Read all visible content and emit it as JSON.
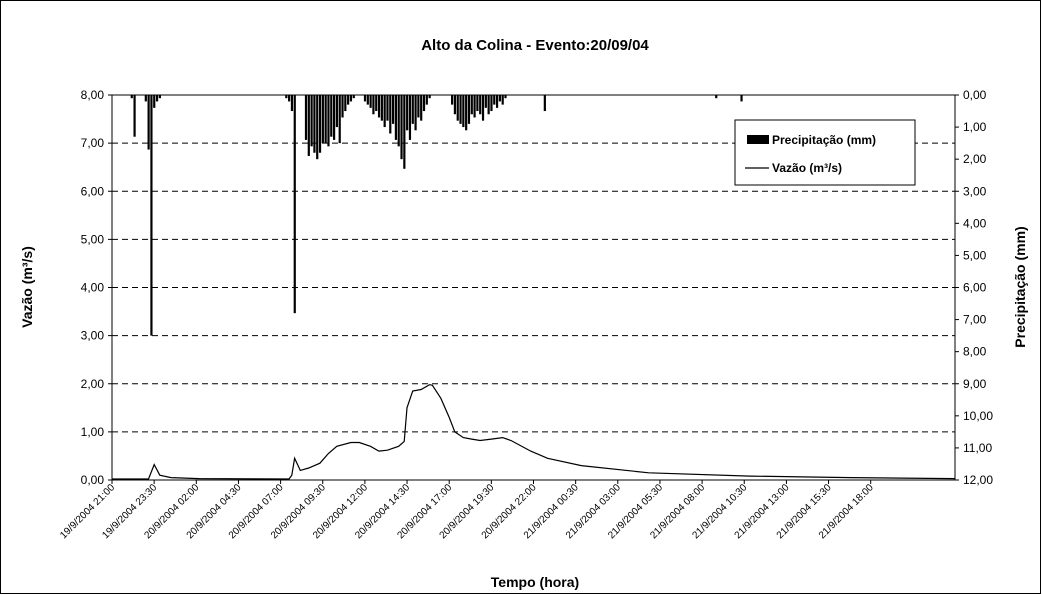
{
  "chart_data": {
    "type": "combo",
    "title": "Alto da Colina - Evento:20/09/04",
    "ylabel": "Vazão (m³/s)",
    "y2label": "Precipitação (mm)",
    "xlabel": "Tempo (hora)",
    "xlim": [
      "19/9/2004 21:00",
      "21/9/2004 23:00"
    ],
    "xticks": [
      "19/9/2004 21:00",
      "19/9/2004 23:30",
      "20/9/2004 02:00",
      "20/9/2004 04:30",
      "20/9/2004 07:00",
      "20/9/2004 09:30",
      "20/9/2004 12:00",
      "20/9/2004 14:30",
      "20/9/2004 17:00",
      "20/9/2004 19:30",
      "20/9/2004 22:00",
      "21/9/2004 00:30",
      "21/9/2004 03:00",
      "21/9/2004 05:30",
      "21/9/2004 08:00",
      "21/9/2004 10:30",
      "21/9/2004 13:00",
      "21/9/2004 15:30",
      "21/9/2004 18:00"
    ],
    "ylim": [
      0,
      8
    ],
    "yticks": [
      {
        "value": 0,
        "label": "0,00"
      },
      {
        "value": 1,
        "label": "1,00"
      },
      {
        "value": 2,
        "label": "2,00"
      },
      {
        "value": 3,
        "label": "3,00"
      },
      {
        "value": 4,
        "label": "4,00"
      },
      {
        "value": 5,
        "label": "5,00"
      },
      {
        "value": 6,
        "label": "6,00"
      },
      {
        "value": 7,
        "label": "7,00"
      },
      {
        "value": 8,
        "label": "8,00"
      }
    ],
    "y2lim": [
      0,
      12
    ],
    "y2_inverted": true,
    "y2ticks": [
      {
        "value": 0,
        "label": "0,00"
      },
      {
        "value": 1,
        "label": "1,00"
      },
      {
        "value": 2,
        "label": "2,00"
      },
      {
        "value": 3,
        "label": "3,00"
      },
      {
        "value": 4,
        "label": "4,00"
      },
      {
        "value": 5,
        "label": "5,00"
      },
      {
        "value": 6,
        "label": "6,00"
      },
      {
        "value": 7,
        "label": "7,00"
      },
      {
        "value": 8,
        "label": "8,00"
      },
      {
        "value": 9,
        "label": "9,00"
      },
      {
        "value": 10,
        "label": "10,00"
      },
      {
        "value": 11,
        "label": "11,00"
      },
      {
        "value": 12,
        "label": "12,00"
      }
    ],
    "grid": true,
    "legend": "upper right",
    "series": [
      {
        "name": "Precipitação (mm)",
        "type": "bar",
        "axis": "y2",
        "color": "#000000",
        "x": [
          "19/9/2004 22:10",
          "19/9/2004 22:20",
          "19/9/2004 23:00",
          "19/9/2004 23:10",
          "19/9/2004 23:20",
          "19/9/2004 23:30",
          "19/9/2004 23:40",
          "19/9/2004 23:50",
          "20/9/2004 07:20",
          "20/9/2004 07:30",
          "20/9/2004 07:40",
          "20/9/2004 07:50",
          "20/9/2004 08:30",
          "20/9/2004 08:40",
          "20/9/2004 08:50",
          "20/9/2004 09:00",
          "20/9/2004 09:10",
          "20/9/2004 09:20",
          "20/9/2004 09:30",
          "20/9/2004 09:40",
          "20/9/2004 09:50",
          "20/9/2004 10:00",
          "20/9/2004 10:10",
          "20/9/2004 10:20",
          "20/9/2004 10:30",
          "20/9/2004 10:40",
          "20/9/2004 10:50",
          "20/9/2004 11:00",
          "20/9/2004 11:10",
          "20/9/2004 11:20",
          "20/9/2004 12:00",
          "20/9/2004 12:10",
          "20/9/2004 12:20",
          "20/9/2004 12:30",
          "20/9/2004 12:40",
          "20/9/2004 12:50",
          "20/9/2004 13:00",
          "20/9/2004 13:10",
          "20/9/2004 13:20",
          "20/9/2004 13:30",
          "20/9/2004 13:40",
          "20/9/2004 13:50",
          "20/9/2004 14:00",
          "20/9/2004 14:10",
          "20/9/2004 14:20",
          "20/9/2004 14:30",
          "20/9/2004 14:40",
          "20/9/2004 14:50",
          "20/9/2004 15:00",
          "20/9/2004 15:10",
          "20/9/2004 15:20",
          "20/9/2004 15:30",
          "20/9/2004 15:40",
          "20/9/2004 15:50",
          "20/9/2004 17:10",
          "20/9/2004 17:20",
          "20/9/2004 17:30",
          "20/9/2004 17:40",
          "20/9/2004 17:50",
          "20/9/2004 18:00",
          "20/9/2004 18:10",
          "20/9/2004 18:20",
          "20/9/2004 18:30",
          "20/9/2004 18:40",
          "20/9/2004 18:50",
          "20/9/2004 19:00",
          "20/9/2004 19:10",
          "20/9/2004 19:20",
          "20/9/2004 19:30",
          "20/9/2004 19:40",
          "20/9/2004 19:50",
          "20/9/2004 20:00",
          "20/9/2004 20:10",
          "20/9/2004 20:20",
          "20/9/2004 22:40",
          "21/9/2004 08:50",
          "21/9/2004 10:20"
        ],
        "values": [
          0.1,
          1.3,
          0.2,
          1.7,
          7.5,
          0.4,
          0.2,
          0.1,
          0.1,
          0.2,
          0.5,
          6.8,
          1.4,
          1.9,
          1.6,
          1.8,
          2.0,
          1.8,
          1.5,
          1.5,
          1.6,
          1.3,
          1.4,
          1.0,
          1.5,
          0.7,
          0.5,
          0.3,
          0.2,
          0.1,
          0.2,
          0.3,
          0.4,
          0.6,
          0.5,
          0.7,
          0.8,
          1.0,
          0.8,
          1.2,
          0.9,
          1.4,
          1.6,
          2.0,
          2.3,
          1.1,
          1.4,
          0.9,
          1.1,
          0.7,
          0.8,
          0.5,
          0.3,
          0.1,
          0.3,
          0.6,
          0.8,
          0.9,
          1.0,
          1.1,
          0.9,
          0.6,
          0.7,
          0.5,
          0.6,
          0.8,
          0.4,
          0.6,
          0.5,
          0.3,
          0.4,
          0.2,
          0.3,
          0.1,
          0.5,
          0.1,
          0.2
        ]
      },
      {
        "name": "Vazão (m³/s)",
        "type": "line",
        "color": "#000000",
        "x": [
          "19/9/2004 21:00",
          "19/9/2004 23:10",
          "19/9/2004 23:30",
          "19/9/2004 23:50",
          "20/9/2004 00:30",
          "20/9/2004 02:10",
          "20/9/2004 07:30",
          "20/9/2004 07:40",
          "20/9/2004 07:50",
          "20/9/2004 08:10",
          "20/9/2004 08:40",
          "20/9/2004 09:20",
          "20/9/2004 09:50",
          "20/9/2004 10:20",
          "20/9/2004 11:10",
          "20/9/2004 11:40",
          "20/9/2004 12:20",
          "20/9/2004 12:50",
          "20/9/2004 13:20",
          "20/9/2004 14:00",
          "20/9/2004 14:20",
          "20/9/2004 14:30",
          "20/9/2004 14:50",
          "20/9/2004 15:20",
          "20/9/2004 15:50",
          "20/9/2004 16:00",
          "20/9/2004 16:30",
          "20/9/2004 17:00",
          "20/9/2004 17:20",
          "20/9/2004 17:50",
          "20/9/2004 18:20",
          "20/9/2004 18:50",
          "20/9/2004 19:30",
          "20/9/2004 20:10",
          "20/9/2004 20:40",
          "20/9/2004 21:50",
          "20/9/2004 22:50",
          "21/9/2004 00:50",
          "21/9/2004 04:50",
          "21/9/2004 10:50",
          "21/9/2004 16:50",
          "21/9/2004 23:00"
        ],
        "values": [
          0.02,
          0.02,
          0.32,
          0.1,
          0.05,
          0.03,
          0.02,
          0.1,
          0.45,
          0.2,
          0.25,
          0.35,
          0.55,
          0.7,
          0.78,
          0.78,
          0.7,
          0.6,
          0.62,
          0.7,
          0.8,
          1.5,
          1.85,
          1.88,
          1.98,
          1.97,
          1.7,
          1.3,
          1.0,
          0.88,
          0.85,
          0.82,
          0.85,
          0.88,
          0.82,
          0.6,
          0.45,
          0.3,
          0.15,
          0.08,
          0.05,
          0.03
        ]
      }
    ]
  }
}
